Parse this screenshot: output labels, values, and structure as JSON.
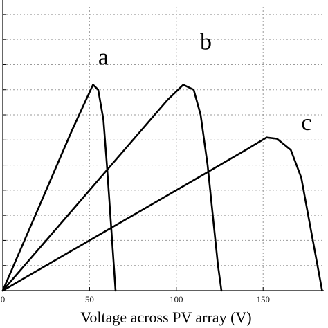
{
  "chart_data": {
    "type": "line",
    "title": "",
    "xlabel": "Voltage across PV array (V)",
    "ylabel": "",
    "xlim": [
      0,
      185
    ],
    "ylim": [
      0,
      11.3
    ],
    "x_ticks": [
      0,
      50,
      100,
      150
    ],
    "x_tick_labels": [
      "0",
      "50",
      "100",
      "150"
    ],
    "y_ticks": [
      0,
      1,
      2,
      3,
      4,
      5,
      6,
      7,
      8,
      9,
      10,
      11
    ],
    "grid": true,
    "legend": "none",
    "series": [
      {
        "name": "a",
        "x": [
          0,
          10,
          20,
          30,
          40,
          48,
          52,
          55,
          58,
          60,
          62,
          64,
          65
        ],
        "y": [
          0,
          1.6,
          3.2,
          4.8,
          6.4,
          7.6,
          8.2,
          8.0,
          6.8,
          5.0,
          3.0,
          1.0,
          0
        ]
      },
      {
        "name": "b",
        "x": [
          0,
          20,
          40,
          60,
          80,
          95,
          104,
          110,
          114,
          118,
          121,
          124,
          126
        ],
        "y": [
          0,
          1.6,
          3.2,
          4.8,
          6.4,
          7.6,
          8.2,
          8.0,
          7.0,
          5.0,
          3.0,
          1.0,
          0
        ]
      },
      {
        "name": "c",
        "x": [
          0,
          40,
          80,
          110,
          140,
          152,
          158,
          166,
          172,
          176,
          180,
          184
        ],
        "y": [
          0,
          1.6,
          3.2,
          4.4,
          5.6,
          6.1,
          6.05,
          5.6,
          4.5,
          3.0,
          1.5,
          0
        ]
      }
    ],
    "annotations": [
      {
        "text": "a",
        "x": 58,
        "y": 9.0
      },
      {
        "text": "b",
        "x": 117,
        "y": 9.6
      },
      {
        "text": "c",
        "x": 175,
        "y": 6.4
      }
    ]
  }
}
